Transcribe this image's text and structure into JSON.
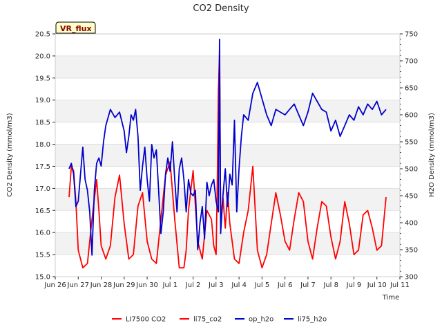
{
  "chart_data": {
    "type": "line",
    "title": "CO2 Density",
    "badge": "VR_flux",
    "xlabel": "Time",
    "ylabel_left": "CO2 Density (mmol/m3)",
    "ylabel_right": "H2O Density (mmol/m3)",
    "x_ticks": [
      "Jun 26",
      "Jun 27",
      "Jun 28",
      "Jun 29",
      "Jun 30",
      "Jul 1",
      "Jul 2",
      "Jul 3",
      "Jul 4",
      "Jul 5",
      "Jul 6",
      "Jul 7",
      "Jul 8",
      "Jul 9",
      "Jul 10",
      "Jul 11"
    ],
    "xlim": [
      0,
      15
    ],
    "ylim_left": [
      15.0,
      20.5
    ],
    "ylim_right": [
      300,
      750
    ],
    "y_ticks_left": [
      "15.0",
      "15.5",
      "16.0",
      "16.5",
      "17.0",
      "17.5",
      "18.0",
      "18.5",
      "19.0",
      "19.5",
      "20.0",
      "20.5"
    ],
    "y_ticks_right": [
      "300",
      "350",
      "400",
      "450",
      "500",
      "550",
      "600",
      "650",
      "700",
      "750"
    ],
    "grid": "horizontal bands",
    "legend_position": "bottom",
    "series": [
      {
        "name": "LI7500 CO2",
        "axis": "left",
        "color": "#ff0000",
        "x": [],
        "values": []
      },
      {
        "name": "li75_co2",
        "axis": "left",
        "color": "#ff0000",
        "x": [
          0.6,
          0.7,
          0.8,
          0.9,
          1.0,
          1.2,
          1.4,
          1.6,
          1.8,
          1.9,
          2.0,
          2.2,
          2.4,
          2.6,
          2.8,
          3.0,
          3.2,
          3.4,
          3.6,
          3.8,
          4.0,
          4.2,
          4.4,
          4.6,
          4.8,
          5.0,
          5.2,
          5.4,
          5.6,
          5.7,
          5.8,
          6.0,
          6.2,
          6.4,
          6.6,
          6.8,
          6.9,
          7.0,
          7.05,
          7.1,
          7.15,
          7.2,
          7.3,
          7.4,
          7.5,
          7.6,
          7.8,
          8.0,
          8.2,
          8.4,
          8.6,
          8.8,
          9.0,
          9.2,
          9.4,
          9.6,
          9.8,
          10.0,
          10.2,
          10.4,
          10.6,
          10.8,
          11.0,
          11.2,
          11.4,
          11.6,
          11.8,
          12.0,
          12.2,
          12.4,
          12.6,
          12.8,
          13.0,
          13.2,
          13.4,
          13.6,
          13.8,
          14.0,
          14.2,
          14.4
        ],
        "values": [
          16.8,
          17.5,
          17.4,
          16.7,
          15.6,
          15.2,
          15.3,
          16.3,
          17.2,
          16.5,
          15.7,
          15.4,
          15.7,
          16.8,
          17.3,
          16.2,
          15.4,
          15.5,
          16.6,
          16.9,
          15.8,
          15.4,
          15.3,
          16.3,
          17.3,
          17.6,
          16.3,
          15.2,
          15.2,
          15.6,
          16.5,
          17.4,
          15.8,
          15.4,
          16.5,
          16.3,
          15.7,
          15.5,
          17.0,
          19.2,
          20.1,
          16.3,
          16.8,
          16.1,
          16.9,
          16.2,
          15.4,
          15.3,
          16.0,
          16.5,
          17.5,
          15.6,
          15.2,
          15.5,
          16.2,
          16.9,
          16.4,
          15.8,
          15.6,
          16.3,
          16.9,
          16.7,
          15.8,
          15.4,
          16.1,
          16.7,
          16.6,
          15.9,
          15.4,
          15.8,
          16.7,
          16.2,
          15.5,
          15.6,
          16.4,
          16.5,
          16.1,
          15.6,
          15.7,
          16.8
        ]
      },
      {
        "name": "op_h2o",
        "axis": "right",
        "color": "#0000cc",
        "x": [],
        "values": []
      },
      {
        "name": "li75_h2o",
        "axis": "right",
        "color": "#0000cc",
        "x": [
          0.6,
          0.7,
          0.8,
          0.9,
          1.0,
          1.1,
          1.2,
          1.3,
          1.4,
          1.5,
          1.6,
          1.7,
          1.8,
          1.9,
          2.0,
          2.1,
          2.2,
          2.4,
          2.6,
          2.8,
          3.0,
          3.1,
          3.2,
          3.3,
          3.4,
          3.5,
          3.6,
          3.7,
          3.8,
          3.9,
          4.0,
          4.1,
          4.2,
          4.3,
          4.4,
          4.5,
          4.6,
          4.7,
          4.8,
          4.9,
          5.0,
          5.1,
          5.2,
          5.3,
          5.4,
          5.5,
          5.6,
          5.7,
          5.8,
          5.9,
          6.0,
          6.1,
          6.2,
          6.3,
          6.4,
          6.5,
          6.6,
          6.7,
          6.8,
          6.9,
          7.0,
          7.05,
          7.1,
          7.15,
          7.2,
          7.3,
          7.4,
          7.5,
          7.6,
          7.7,
          7.8,
          7.9,
          8.0,
          8.1,
          8.2,
          8.4,
          8.6,
          8.8,
          9.0,
          9.2,
          9.4,
          9.6,
          9.8,
          10.0,
          10.2,
          10.4,
          10.6,
          10.8,
          11.0,
          11.2,
          11.4,
          11.6,
          11.8,
          12.0,
          12.2,
          12.4,
          12.6,
          12.8,
          13.0,
          13.2,
          13.4,
          13.6,
          13.8,
          14.0,
          14.2,
          14.4
        ],
        "values": [
          500,
          510,
          490,
          430,
          440,
          490,
          540,
          480,
          460,
          420,
          340,
          460,
          510,
          520,
          505,
          550,
          580,
          610,
          595,
          605,
          570,
          530,
          560,
          600,
          590,
          610,
          560,
          460,
          505,
          540,
          480,
          440,
          545,
          520,
          535,
          460,
          380,
          420,
          490,
          520,
          495,
          550,
          480,
          420,
          500,
          520,
          480,
          420,
          480,
          455,
          450,
          460,
          350,
          400,
          430,
          370,
          475,
          450,
          470,
          480,
          440,
          430,
          420,
          740,
          380,
          450,
          500,
          430,
          490,
          470,
          590,
          420,
          500,
          560,
          600,
          590,
          640,
          660,
          630,
          600,
          580,
          610,
          605,
          600,
          610,
          620,
          600,
          580,
          605,
          640,
          625,
          610,
          605,
          570,
          590,
          560,
          580,
          600,
          590,
          615,
          600,
          620,
          610,
          625,
          600,
          610
        ]
      }
    ]
  }
}
